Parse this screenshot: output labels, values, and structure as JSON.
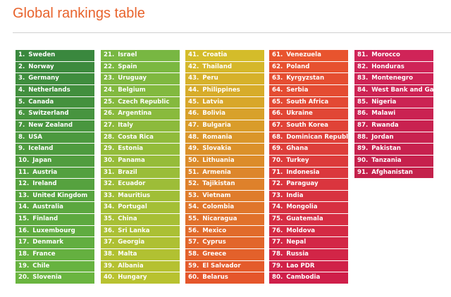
{
  "header": {
    "title": "Global rankings table"
  },
  "columns": [
    {
      "items": [
        {
          "rank": "1.",
          "name": "Sweden"
        },
        {
          "rank": "2.",
          "name": "Norway"
        },
        {
          "rank": "3.",
          "name": "Germany"
        },
        {
          "rank": "4.",
          "name": "Netherlands"
        },
        {
          "rank": "5.",
          "name": "Canada"
        },
        {
          "rank": "6.",
          "name": "Switzerland"
        },
        {
          "rank": "7.",
          "name": "New Zealand"
        },
        {
          "rank": "8.",
          "name": "USA"
        },
        {
          "rank": "9.",
          "name": "Iceland"
        },
        {
          "rank": "10.",
          "name": "Japan"
        },
        {
          "rank": "11.",
          "name": "Austria"
        },
        {
          "rank": "12.",
          "name": "Ireland"
        },
        {
          "rank": "13.",
          "name": "United Kingdom"
        },
        {
          "rank": "14.",
          "name": "Australia"
        },
        {
          "rank": "15.",
          "name": "Finland"
        },
        {
          "rank": "16.",
          "name": "Luxembourg"
        },
        {
          "rank": "17.",
          "name": "Denmark"
        },
        {
          "rank": "18.",
          "name": "France"
        },
        {
          "rank": "19.",
          "name": "Chile"
        },
        {
          "rank": "20.",
          "name": "Slovenia"
        }
      ]
    },
    {
      "items": [
        {
          "rank": "21.",
          "name": "Israel"
        },
        {
          "rank": "22.",
          "name": "Spain"
        },
        {
          "rank": "23.",
          "name": "Uruguay"
        },
        {
          "rank": "24.",
          "name": "Belgium"
        },
        {
          "rank": "25.",
          "name": "Czech Republic"
        },
        {
          "rank": "26.",
          "name": "Argentina"
        },
        {
          "rank": "27.",
          "name": "Italy"
        },
        {
          "rank": "28.",
          "name": "Costa Rica"
        },
        {
          "rank": "29.",
          "name": "Estonia"
        },
        {
          "rank": "30.",
          "name": "Panama"
        },
        {
          "rank": "31.",
          "name": "Brazil"
        },
        {
          "rank": "32.",
          "name": "Ecuador"
        },
        {
          "rank": "33.",
          "name": "Mauritius"
        },
        {
          "rank": "34.",
          "name": "Portugal"
        },
        {
          "rank": "35.",
          "name": "China"
        },
        {
          "rank": "36.",
          "name": "Sri Lanka"
        },
        {
          "rank": "37.",
          "name": "Georgia"
        },
        {
          "rank": "38.",
          "name": "Malta"
        },
        {
          "rank": "39.",
          "name": "Albania"
        },
        {
          "rank": "40.",
          "name": "Hungary"
        }
      ]
    },
    {
      "items": [
        {
          "rank": "41.",
          "name": "Croatia"
        },
        {
          "rank": "42.",
          "name": "Thailand"
        },
        {
          "rank": "43.",
          "name": "Peru"
        },
        {
          "rank": "44.",
          "name": "Philippines"
        },
        {
          "rank": "45.",
          "name": "Latvia"
        },
        {
          "rank": "46.",
          "name": "Bolivia"
        },
        {
          "rank": "47.",
          "name": "Bulgaria"
        },
        {
          "rank": "48.",
          "name": "Romania"
        },
        {
          "rank": "49.",
          "name": "Slovakia"
        },
        {
          "rank": "50.",
          "name": "Lithuania"
        },
        {
          "rank": "51.",
          "name": "Armenia"
        },
        {
          "rank": "52.",
          "name": "Tajikistan"
        },
        {
          "rank": "53.",
          "name": "Vietnam"
        },
        {
          "rank": "54.",
          "name": "Colombia"
        },
        {
          "rank": "55.",
          "name": "Nicaragua"
        },
        {
          "rank": "56.",
          "name": "Mexico"
        },
        {
          "rank": "57.",
          "name": "Cyprus"
        },
        {
          "rank": "58.",
          "name": "Greece"
        },
        {
          "rank": "59.",
          "name": "El Salvador"
        },
        {
          "rank": "60.",
          "name": "Belarus"
        }
      ]
    },
    {
      "items": [
        {
          "rank": "61.",
          "name": "Venezuela"
        },
        {
          "rank": "62.",
          "name": "Poland"
        },
        {
          "rank": "63.",
          "name": "Kyrgyzstan"
        },
        {
          "rank": "64.",
          "name": "Serbia"
        },
        {
          "rank": "65.",
          "name": "South Africa"
        },
        {
          "rank": "66.",
          "name": "Ukraine"
        },
        {
          "rank": "67.",
          "name": "South Korea"
        },
        {
          "rank": "68.",
          "name": "Dominican Republic"
        },
        {
          "rank": "69.",
          "name": "Ghana"
        },
        {
          "rank": "70.",
          "name": "Turkey"
        },
        {
          "rank": "71.",
          "name": "Indonesia"
        },
        {
          "rank": "72.",
          "name": "Paraguay"
        },
        {
          "rank": "73.",
          "name": "India"
        },
        {
          "rank": "74.",
          "name": "Mongolia"
        },
        {
          "rank": "75.",
          "name": "Guatemala"
        },
        {
          "rank": "76.",
          "name": "Moldova"
        },
        {
          "rank": "77.",
          "name": "Nepal"
        },
        {
          "rank": "78.",
          "name": "Russia"
        },
        {
          "rank": "79.",
          "name": "Lao PDR"
        },
        {
          "rank": "80.",
          "name": "Cambodia"
        }
      ]
    },
    {
      "items": [
        {
          "rank": "81.",
          "name": "Morocco"
        },
        {
          "rank": "82.",
          "name": "Honduras"
        },
        {
          "rank": "83.",
          "name": "Montenegro"
        },
        {
          "rank": "84.",
          "name": "West Bank and Gaza"
        },
        {
          "rank": "85.",
          "name": "Nigeria"
        },
        {
          "rank": "86.",
          "name": "Malawi"
        },
        {
          "rank": "87.",
          "name": "Rwanda"
        },
        {
          "rank": "88.",
          "name": "Jordan"
        },
        {
          "rank": "89.",
          "name": "Pakistan"
        },
        {
          "rank": "90.",
          "name": "Tanzania"
        },
        {
          "rank": "91.",
          "name": "Afghanistan"
        }
      ]
    }
  ]
}
